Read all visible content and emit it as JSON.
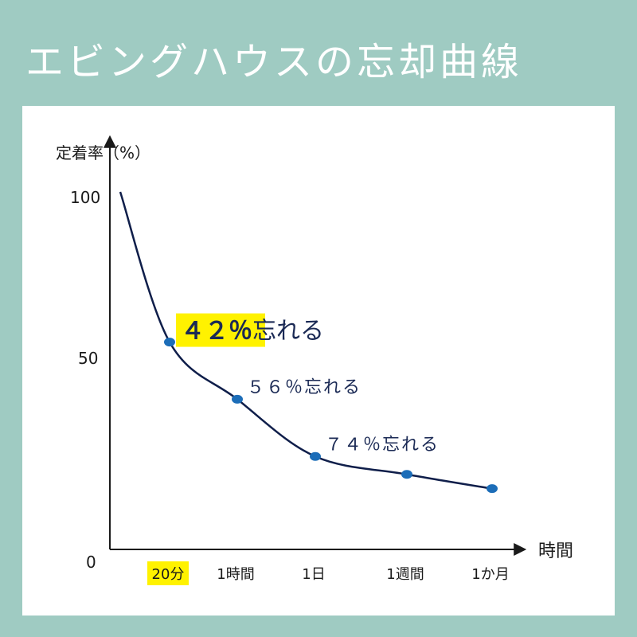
{
  "title": "エビングハウスの忘却曲線",
  "colors": {
    "background": "#9fcbc2",
    "panel": "#ffffff",
    "curve": "#0f1e4a",
    "point": "#1c6db8",
    "highlight": "#fff200",
    "text": "#1b2a55"
  },
  "chart_data": {
    "type": "line",
    "ylabel": "定着率（%）",
    "xlabel": "時間",
    "yticks": [
      "100",
      "50",
      "0"
    ],
    "ylim": [
      0,
      100
    ],
    "categories": [
      "20分",
      "1時間",
      "1日",
      "1週間",
      "1か月"
    ],
    "highlighted_category": "20分",
    "series": [
      {
        "values": [
          58,
          42,
          26,
          21,
          17
        ]
      }
    ],
    "curve_start": {
      "x": "0",
      "y": 100
    },
    "annotations": [
      {
        "category": "20分",
        "text_number": "４２％",
        "text_suffix": "忘れる",
        "highlighted": true
      },
      {
        "category": "1時間",
        "text": "５６％忘れる"
      },
      {
        "category": "1日",
        "text": "７４％忘れる"
      }
    ],
    "grid": false,
    "legend": "none"
  }
}
